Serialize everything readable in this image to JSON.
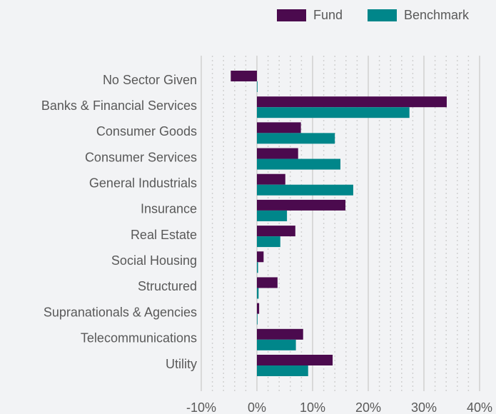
{
  "chart_data": {
    "type": "bar",
    "orientation": "horizontal",
    "categories": [
      "No Sector Given",
      "Banks & Financial Services",
      "Consumer Goods",
      "Consumer Services",
      "General Industrials",
      "Insurance",
      "Real Estate",
      "Social Housing",
      "Structured",
      "Supranationals & Agencies",
      "Telecommunications",
      "Utility"
    ],
    "series": [
      {
        "name": "Fund",
        "color": "#4b0a4e",
        "values": [
          -4.7,
          34.1,
          7.9,
          7.4,
          5.1,
          15.9,
          6.9,
          1.2,
          3.7,
          0.4,
          8.3,
          13.6
        ]
      },
      {
        "name": "Benchmark",
        "color": "#00868a",
        "values": [
          0.1,
          27.4,
          14.0,
          15.0,
          17.3,
          5.4,
          4.2,
          0.2,
          0.3,
          0.0,
          7.0,
          9.2
        ]
      }
    ],
    "xlim": [
      -10,
      40
    ],
    "xticks": [
      {
        "value": -10,
        "label": "-10%"
      },
      {
        "value": 0,
        "label": "0%"
      },
      {
        "value": 10,
        "label": "10%"
      },
      {
        "value": 20,
        "label": "20%"
      },
      {
        "value": 30,
        "label": "30%"
      },
      {
        "value": 40,
        "label": "40%"
      }
    ],
    "grid": true,
    "legend": "top-right"
  }
}
